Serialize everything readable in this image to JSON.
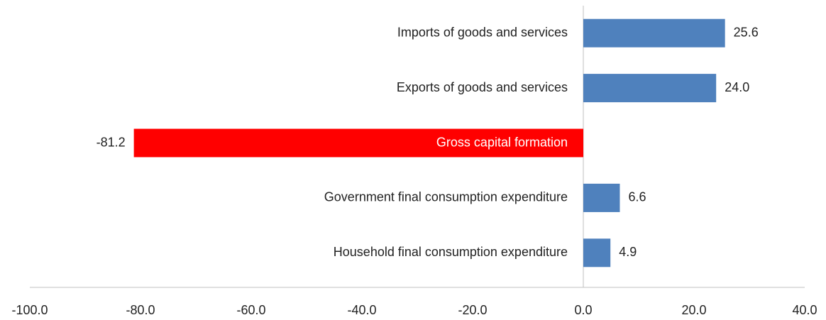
{
  "chart_data": {
    "type": "barh",
    "categories": [
      "Imports of goods and services",
      "Exports of goods and services",
      "Gross capital formation",
      "Government final consumption expenditure",
      "Household final consumption expenditure"
    ],
    "values": [
      25.6,
      24.0,
      -81.2,
      6.6,
      4.9
    ],
    "value_labels": [
      "25.6",
      "24.0",
      "-81.2",
      "6.6",
      "4.9"
    ],
    "colors": [
      "#4f81bd",
      "#4f81bd",
      "#ff0000",
      "#4f81bd",
      "#4f81bd"
    ],
    "xlim": [
      -100,
      40
    ],
    "xticks": [
      {
        "value": -100,
        "label": "-100.0"
      },
      {
        "value": -80,
        "label": "-80.0"
      },
      {
        "value": -60,
        "label": "-60.0"
      },
      {
        "value": -40,
        "label": "-40.0"
      },
      {
        "value": -20,
        "label": "-20.0"
      },
      {
        "value": 0,
        "label": "0.0"
      },
      {
        "value": 20,
        "label": "20.0"
      },
      {
        "value": 40,
        "label": "40.0"
      }
    ],
    "grid": false
  }
}
